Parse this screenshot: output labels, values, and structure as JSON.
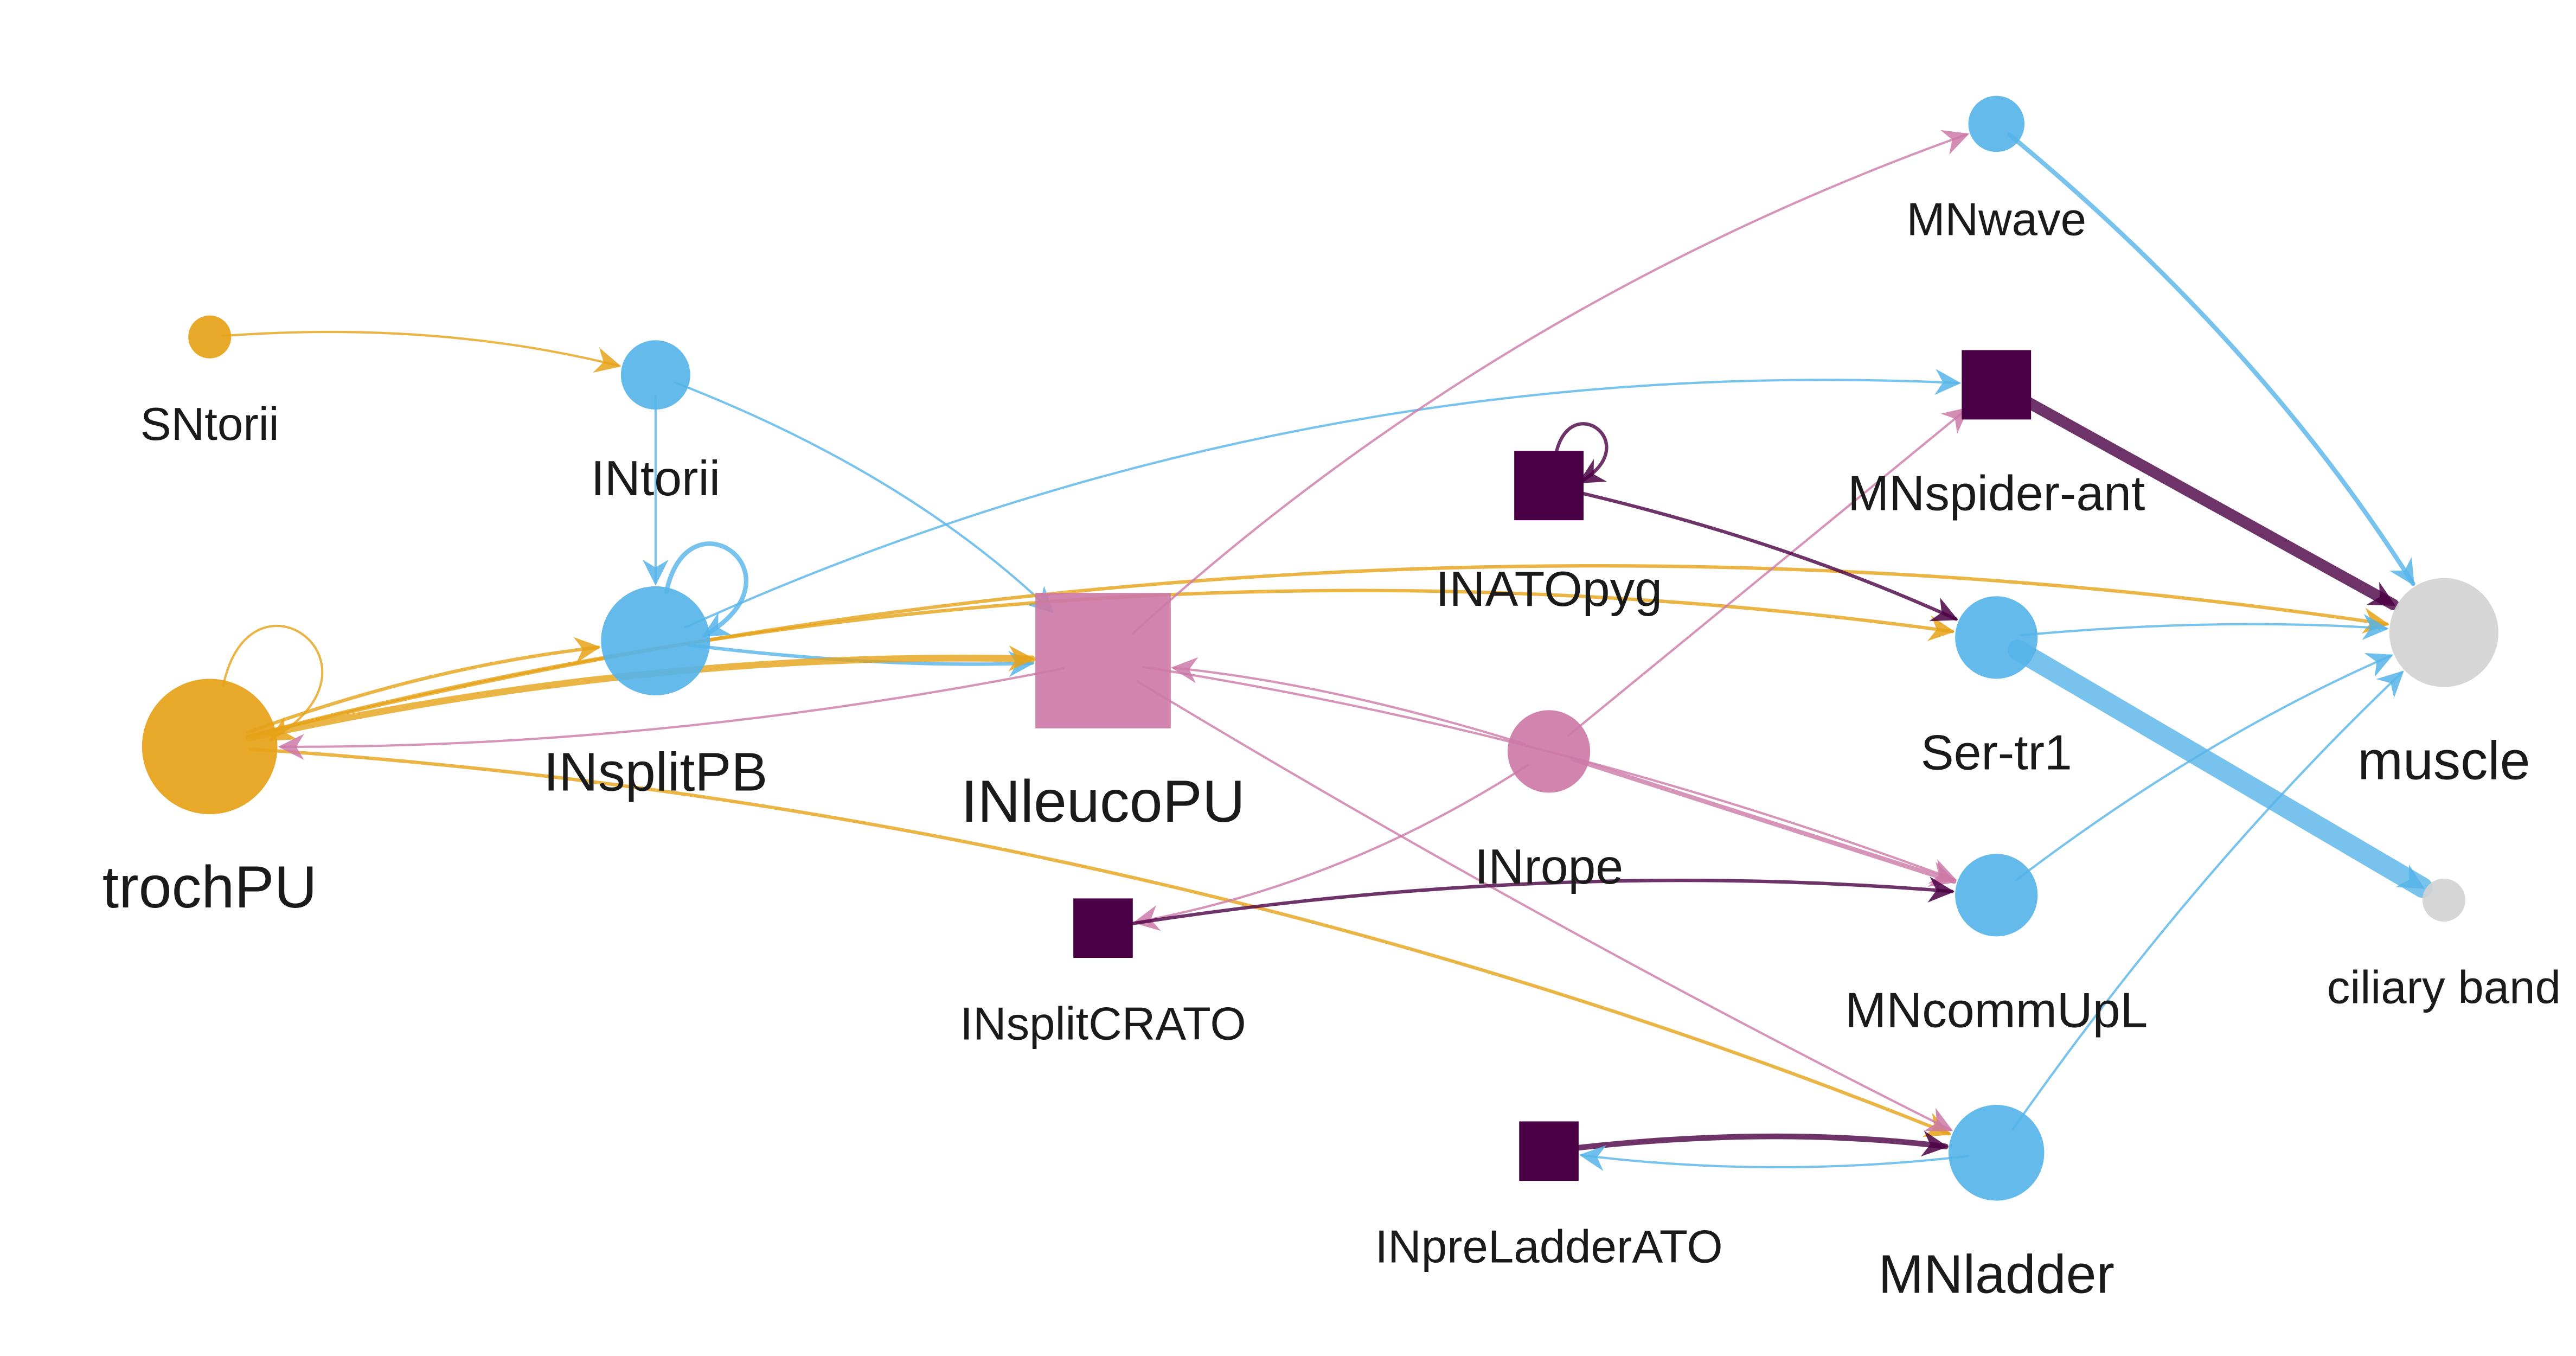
{
  "colors": {
    "sensory": "#E6A218",
    "interneuron_blue": "#56B4E9",
    "interneuron_pink": "#CC79A7",
    "dark": "#4A0044",
    "effector": "#D3D3D3"
  },
  "nodes": [
    {
      "id": "SNtorii",
      "label": "SNtorii",
      "shape": "circle",
      "color": "sensory"
    },
    {
      "id": "INtorii",
      "label": "INtorii",
      "shape": "circle",
      "color": "interneuron_blue"
    },
    {
      "id": "INsplitPB",
      "label": "INsplitPB",
      "shape": "circle",
      "color": "interneuron_blue"
    },
    {
      "id": "trochPU",
      "label": "trochPU",
      "shape": "circle",
      "color": "sensory"
    },
    {
      "id": "INleucoPU",
      "label": "INleucoPU",
      "shape": "square",
      "color": "interneuron_pink"
    },
    {
      "id": "INATOpyg",
      "label": "INATOpyg",
      "shape": "square",
      "color": "dark"
    },
    {
      "id": "INrope",
      "label": "INrope",
      "shape": "circle",
      "color": "interneuron_pink"
    },
    {
      "id": "INsplitCRATO",
      "label": "INsplitCRATO",
      "shape": "square",
      "color": "dark"
    },
    {
      "id": "INpreLadderATO",
      "label": "INpreLadderATO",
      "shape": "square",
      "color": "dark"
    },
    {
      "id": "MNwave",
      "label": "MNwave",
      "shape": "circle",
      "color": "interneuron_blue"
    },
    {
      "id": "MNspider-ant",
      "label": "MNspider-ant",
      "shape": "square",
      "color": "dark"
    },
    {
      "id": "Ser-tr1",
      "label": "Ser-tr1",
      "shape": "circle",
      "color": "interneuron_blue"
    },
    {
      "id": "MNcommUpL",
      "label": "MNcommUpL",
      "shape": "circle",
      "color": "interneuron_blue"
    },
    {
      "id": "MNladder",
      "label": "MNladder",
      "shape": "circle",
      "color": "interneuron_blue"
    },
    {
      "id": "muscle",
      "label": "muscle",
      "shape": "circle",
      "color": "effector"
    },
    {
      "id": "ciliary band",
      "label": "ciliary band",
      "shape": "circle",
      "color": "effector"
    }
  ],
  "edges": [
    {
      "source": "SNtorii",
      "target": "INtorii",
      "color": "sensory",
      "weight": 1
    },
    {
      "source": "INtorii",
      "target": "INsplitPB",
      "color": "interneuron_blue",
      "weight": 1
    },
    {
      "source": "INtorii",
      "target": "INleucoPU",
      "color": "interneuron_blue",
      "weight": 1
    },
    {
      "source": "INsplitPB",
      "target": "INsplitPB",
      "color": "interneuron_blue",
      "weight": 2
    },
    {
      "source": "INsplitPB",
      "target": "INleucoPU",
      "color": "interneuron_blue",
      "weight": 1.5
    },
    {
      "source": "INsplitPB",
      "target": "MNspider-ant",
      "color": "interneuron_blue",
      "weight": 1
    },
    {
      "source": "trochPU",
      "target": "trochPU",
      "color": "sensory",
      "weight": 1
    },
    {
      "source": "trochPU",
      "target": "INsplitPB",
      "color": "sensory",
      "weight": 1.5
    },
    {
      "source": "trochPU",
      "target": "INleucoPU",
      "color": "sensory",
      "weight": 3
    },
    {
      "source": "trochPU",
      "target": "Ser-tr1",
      "color": "sensory",
      "weight": 1.5
    },
    {
      "source": "trochPU",
      "target": "muscle",
      "color": "sensory",
      "weight": 1.5
    },
    {
      "source": "trochPU",
      "target": "MNladder",
      "color": "sensory",
      "weight": 1.5
    },
    {
      "source": "INleucoPU",
      "target": "trochPU",
      "color": "interneuron_pink",
      "weight": 1
    },
    {
      "source": "INleucoPU",
      "target": "MNwave",
      "color": "interneuron_pink",
      "weight": 1
    },
    {
      "source": "INleucoPU",
      "target": "MNcommUpL",
      "color": "interneuron_pink",
      "weight": 1
    },
    {
      "source": "INleucoPU",
      "target": "MNladder",
      "color": "interneuron_pink",
      "weight": 1
    },
    {
      "source": "INrope",
      "target": "INleucoPU",
      "color": "interneuron_pink",
      "weight": 1
    },
    {
      "source": "INrope",
      "target": "MNspider-ant",
      "color": "interneuron_pink",
      "weight": 1
    },
    {
      "source": "INrope",
      "target": "INsplitCRATO",
      "color": "interneuron_pink",
      "weight": 1
    },
    {
      "source": "INrope",
      "target": "MNcommUpL",
      "color": "interneuron_pink",
      "weight": 2
    },
    {
      "source": "INATOpyg",
      "target": "INATOpyg",
      "color": "dark",
      "weight": 1.5
    },
    {
      "source": "INATOpyg",
      "target": "Ser-tr1",
      "color": "dark",
      "weight": 1.5
    },
    {
      "source": "INsplitCRATO",
      "target": "MNcommUpL",
      "color": "dark",
      "weight": 1.5
    },
    {
      "source": "INpreLadderATO",
      "target": "MNladder",
      "color": "dark",
      "weight": 2.5
    },
    {
      "source": "MNladder",
      "target": "INpreLadderATO",
      "color": "interneuron_blue",
      "weight": 1
    },
    {
      "source": "MNladder",
      "target": "muscle",
      "color": "interneuron_blue",
      "weight": 1
    },
    {
      "source": "MNwave",
      "target": "muscle",
      "color": "interneuron_blue",
      "weight": 2
    },
    {
      "source": "MNspider-ant",
      "target": "muscle",
      "color": "dark",
      "weight": 5
    },
    {
      "source": "Ser-tr1",
      "target": "muscle",
      "color": "interneuron_blue",
      "weight": 1
    },
    {
      "source": "Ser-tr1",
      "target": "ciliary band",
      "color": "interneuron_blue",
      "weight": 9
    },
    {
      "source": "MNcommUpL",
      "target": "muscle",
      "color": "interneuron_blue",
      "weight": 1
    }
  ]
}
